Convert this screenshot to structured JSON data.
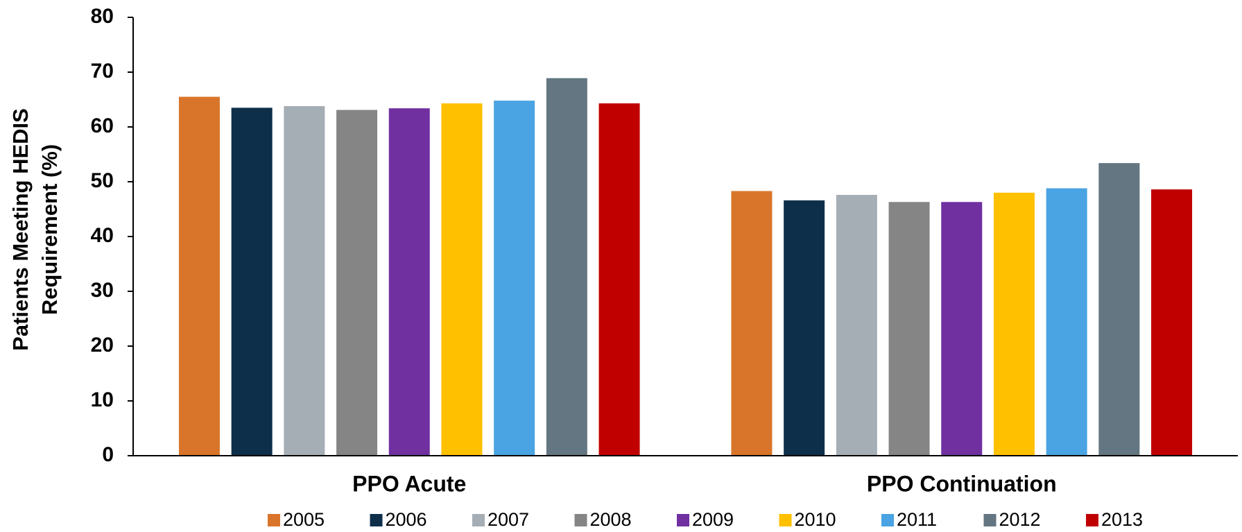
{
  "chart_data": {
    "type": "bar",
    "y_label": [
      "Patients Meeting HEDIS",
      "Requirement (%)"
    ],
    "categories": [
      "PPO Acute",
      "PPO Continuation"
    ],
    "series": [
      {
        "name": "2005",
        "color": "#d9752a",
        "values": [
          65.5,
          48.3
        ]
      },
      {
        "name": "2006",
        "color": "#0e2f4a",
        "values": [
          63.5,
          46.6
        ]
      },
      {
        "name": "2007",
        "color": "#a5aeb5",
        "values": [
          63.8,
          47.6
        ]
      },
      {
        "name": "2008",
        "color": "#858585",
        "values": [
          63.1,
          46.3
        ]
      },
      {
        "name": "2009",
        "color": "#7030a0",
        "values": [
          63.4,
          46.3
        ]
      },
      {
        "name": "2010",
        "color": "#ffc000",
        "values": [
          64.3,
          48.0
        ]
      },
      {
        "name": "2011",
        "color": "#4aa3e2",
        "values": [
          64.8,
          48.8
        ]
      },
      {
        "name": "2012",
        "color": "#637681",
        "values": [
          68.9,
          53.4
        ]
      },
      {
        "name": "2013",
        "color": "#c00000",
        "values": [
          64.3,
          48.6
        ]
      }
    ],
    "ylim": [
      0,
      80
    ],
    "yticks": [
      0,
      10,
      20,
      30,
      40,
      50,
      60,
      70,
      80
    ],
    "legend": "bottom"
  }
}
